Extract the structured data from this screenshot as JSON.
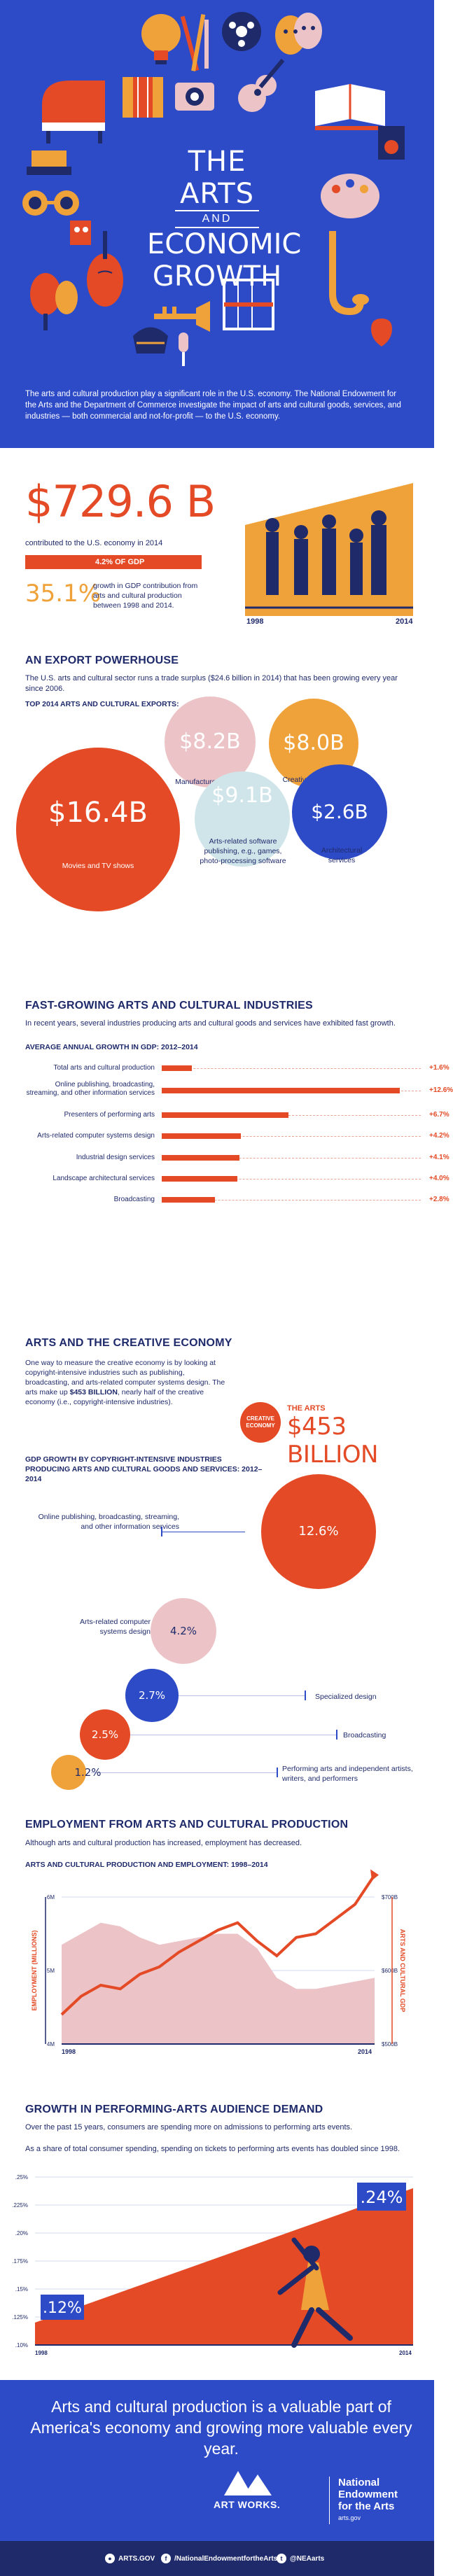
{
  "header": {
    "title_line1": "THE ARTS",
    "title_line2": "AND",
    "title_line3": "ECONOMIC",
    "title_line4": "GROWTH",
    "intro": "The arts and cultural production play a significant role in the U.S. economy. The National Endowment for the Arts and the Department of Commerce investigate the impact of arts and cultural goods, services, and industries — both commercial and not-for-profit — to the U.S. economy."
  },
  "headline": {
    "value": "$729.6 B",
    "sub": "contributed to the U.S. economy in 2014",
    "gdp_share": "4.2% OF GDP",
    "growth_pct": "35.1%",
    "growth_desc": "growth in GDP contribution from arts and cultural production between 1998 and 2014.",
    "year_start": "1998",
    "year_end": "2014"
  },
  "export": {
    "heading": "AN EXPORT POWERHOUSE",
    "text": "The U.S. arts and cultural sector runs a trade surplus ($24.6 billion in 2014) that has been growing every year since 2006.",
    "subheading": "TOP 2014 ARTS AND CULTURAL EXPORTS:"
  },
  "fast_growing": {
    "heading": "FAST-GROWING ARTS AND CULTURAL INDUSTRIES",
    "text": "In recent years, several industries producing arts and cultural goods and services have exhibited fast growth.",
    "subheading": "AVERAGE ANNUAL GROWTH IN GDP: 2012–2014"
  },
  "creative": {
    "heading": "ARTS AND THE CREATIVE ECONOMY",
    "text_a": "One way to measure the creative economy is by looking at copyright-intensive industries such as publishing, broadcasting, and arts-related computer systems design. The arts make up ",
    "text_b": "$453 BILLION",
    "text_c": ", nearly half of the creative economy (i.e., copyright-intensive industries).",
    "badge": "CREATIVE ECONOMY",
    "arts_label": "THE ARTS",
    "arts_value": "$453 BILLION",
    "subheading": "GDP GROWTH BY COPYRIGHT-INTENSIVE INDUSTRIES PRODUCING ARTS AND CULTURAL GOODS AND SERVICES: 2012–2014"
  },
  "employment": {
    "heading": "EMPLOYMENT FROM ARTS AND CULTURAL PRODUCTION",
    "text": "Although arts and cultural production has increased, employment has decreased.",
    "subheading": "ARTS AND CULTURAL PRODUCTION AND EMPLOYMENT: 1998–2014"
  },
  "performing": {
    "heading": "GROWTH IN PERFORMING-ARTS AUDIENCE DEMAND",
    "text": "Over the past 15 years, consumers are spending more on admissions to performing arts events.",
    "text2": "As a share of total consumer spending, spending on tickets to performing arts events has doubled since 1998."
  },
  "footer": {
    "tagline": "Arts and cultural production is a valuable part of America's economy and growing more valuable every year.",
    "artworks": "ART WORKS.",
    "nea_line1": "National",
    "nea_line2": "Endowment",
    "nea_line3": "for the Arts",
    "nea_gov": "arts.gov",
    "social_web": "ARTS.GOV",
    "social_fb": "/NationalEndowmentfortheArts",
    "social_tw": "@NEAarts"
  },
  "colors": {
    "blue": "#2e4bc7",
    "navy": "#1f2a6b",
    "orange_red": "#e34a25",
    "gold": "#f0a23a",
    "pink": "#ecc4c8",
    "light_blue": "#cfe5ea"
  },
  "chart_data": [
    {
      "type": "bubble",
      "title": "TOP 2014 ARTS AND CULTURAL EXPORTS:",
      "items": [
        {
          "label": "Movies and TV shows",
          "value": 16.4,
          "display": "$16.4B",
          "color": "#e34a25"
        },
        {
          "label": "Manufactured jewelry",
          "value": 8.2,
          "display": "$8.2B",
          "color": "#ecc4c8"
        },
        {
          "label": "Creative advertising",
          "value": 8.0,
          "display": "$8.0B",
          "color": "#f0a23a"
        },
        {
          "label": "Arts-related software publishing, e.g., games, photo-processing software",
          "value": 9.1,
          "display": "$9.1B",
          "color": "#cfe5ea"
        },
        {
          "label": "Architectural services",
          "value": 2.6,
          "display": "$2.6B",
          "color": "#2e4bc7"
        }
      ]
    },
    {
      "type": "bar",
      "title": "AVERAGE ANNUAL GROWTH IN GDP: 2012–2014",
      "categories": [
        "Total arts and cultural production",
        "Online publishing, broadcasting, streaming, and other information services",
        "Presenters of performing arts",
        "Arts-related computer systems design",
        "Industrial design services",
        "Landscape architectural services",
        "Broadcasting"
      ],
      "values": [
        1.6,
        12.6,
        6.7,
        4.2,
        4.1,
        4.0,
        2.8
      ],
      "labels": [
        "+1.6%",
        "+12.6%",
        "+6.7%",
        "+4.2%",
        "+4.1%",
        "+4.0%",
        "+2.8%"
      ]
    },
    {
      "type": "bubble",
      "title": "GDP GROWTH BY COPYRIGHT-INTENSIVE INDUSTRIES PRODUCING ARTS AND CULTURAL GOODS AND SERVICES: 2012–2014",
      "items": [
        {
          "label": "Online publishing, broadcasting, streaming, and other information services",
          "value": 12.6,
          "display": "12.6%",
          "color": "#e34a25"
        },
        {
          "label": "Arts-related computer systems design",
          "value": 4.2,
          "display": "4.2%",
          "color": "#ecc4c8"
        },
        {
          "label": "Specialized design",
          "value": 2.7,
          "display": "2.7%",
          "color": "#2e4bc7"
        },
        {
          "label": "Broadcasting",
          "value": 2.5,
          "display": "2.5%",
          "color": "#e34a25"
        },
        {
          "label": "Performing arts and independent artists, writers, and performers",
          "value": 1.2,
          "display": "1.2%",
          "color": "#f0a23a"
        }
      ]
    },
    {
      "type": "area",
      "title": "ARTS AND CULTURAL PRODUCTION AND EMPLOYMENT: 1998–2014",
      "x": [
        1998,
        1999,
        2000,
        2001,
        2002,
        2003,
        2004,
        2005,
        2006,
        2007,
        2008,
        2009,
        2010,
        2011,
        2012,
        2013,
        2014
      ],
      "x_labels": [
        "1998",
        "2014"
      ],
      "ylabel_left": "EMPLOYMENT (MILLIONS)",
      "ylabel_right": "ARTS AND CULTURAL GDP",
      "yticks_left": [
        "4M",
        "5M",
        "6M"
      ],
      "yticks_right": [
        "$500B",
        "$600B",
        "$700B"
      ],
      "series": [
        {
          "name": "Employment",
          "axis": "left",
          "values": [
            5.35,
            5.5,
            5.65,
            5.6,
            5.45,
            5.35,
            5.4,
            5.45,
            5.5,
            5.5,
            5.3,
            4.9,
            4.75,
            4.75,
            4.8,
            4.85,
            4.9
          ],
          "color": "#ecc4c8"
        },
        {
          "name": "GDP",
          "axis": "right",
          "values": [
            540,
            565,
            580,
            575,
            595,
            605,
            625,
            640,
            655,
            665,
            640,
            620,
            645,
            650,
            670,
            690,
            730
          ],
          "color": "#e34a25"
        }
      ]
    },
    {
      "type": "area",
      "title": "GROWTH IN PERFORMING-ARTS AUDIENCE DEMAND",
      "x": [
        1998,
        2014
      ],
      "x_labels": [
        "1998",
        "2014"
      ],
      "yticks": [
        ".10%",
        ".125%",
        ".15%",
        ".175%",
        ".20%",
        ".225%",
        ".25%"
      ],
      "values": [
        0.12,
        0.24
      ],
      "labels": [
        ".12%",
        ".24%"
      ],
      "color": "#e34a25"
    }
  ]
}
